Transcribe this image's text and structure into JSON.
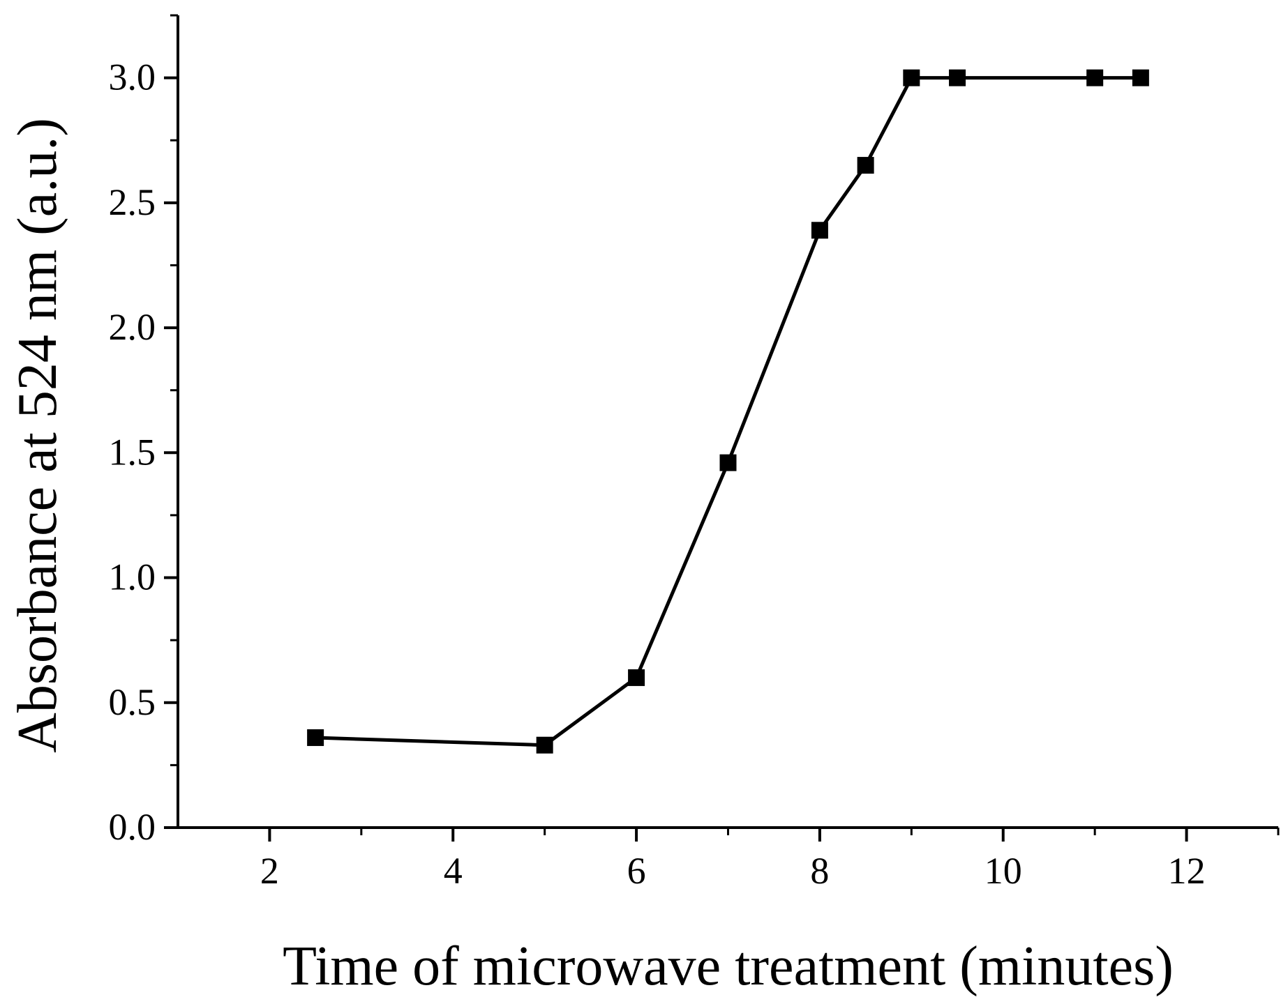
{
  "chart_data": {
    "type": "line",
    "title": "",
    "xlabel": "Time of microwave treatment (minutes)",
    "ylabel": "Absorbance at 524 nm (a.u.)",
    "xlim": [
      1,
      13
    ],
    "ylim": [
      0,
      3.25
    ],
    "x_ticks": [
      2,
      4,
      6,
      8,
      10,
      12
    ],
    "x_minor_ticks": [
      3,
      5,
      7,
      9,
      11,
      13
    ],
    "y_ticks": [
      0.0,
      0.5,
      1.0,
      1.5,
      2.0,
      2.5,
      3.0
    ],
    "x_tick_labels": [
      "2",
      "4",
      "6",
      "8",
      "10",
      "12"
    ],
    "y_tick_labels": [
      "0.0",
      "0.5",
      "1.0",
      "1.5",
      "2.0",
      "2.5",
      "3.0"
    ],
    "grid": false,
    "series": [
      {
        "name": "Absorbance",
        "marker": "square",
        "color": "#000000",
        "x": [
          2.5,
          5,
          6,
          7,
          8,
          8.5,
          9,
          9.5,
          11,
          11.5
        ],
        "y": [
          0.36,
          0.33,
          0.6,
          1.46,
          2.39,
          2.65,
          3.0,
          3.0,
          3.0,
          3.0
        ]
      }
    ]
  }
}
